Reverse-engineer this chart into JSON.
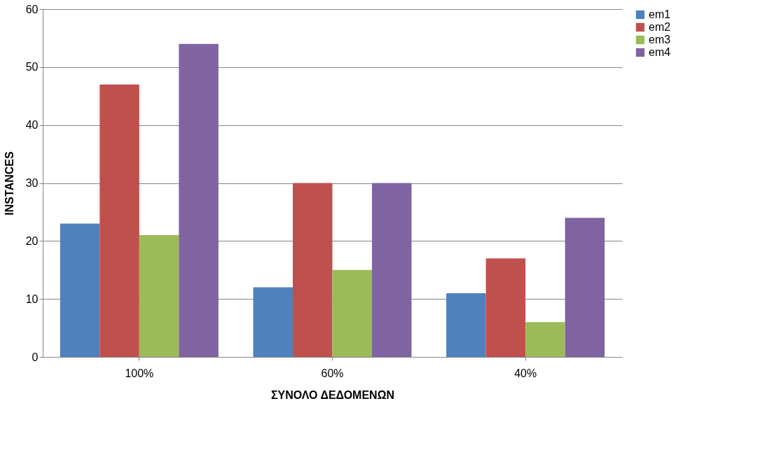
{
  "chart_data": {
    "type": "bar",
    "xlabel": "ΣΥΝΟΛΟ ΔΕΔΟΜΕΝΩΝ",
    "ylabel": "INSTANCES",
    "categories": [
      "100%",
      "60%",
      "40%"
    ],
    "series": [
      {
        "name": "em1",
        "color": "#4f81bd",
        "values": [
          23,
          12,
          11
        ]
      },
      {
        "name": "em2",
        "color": "#c0504d",
        "values": [
          47,
          30,
          17
        ]
      },
      {
        "name": "em3",
        "color": "#9bbb59",
        "values": [
          21,
          15,
          6
        ]
      },
      {
        "name": "em4",
        "color": "#8064a2",
        "values": [
          54,
          30,
          24
        ]
      }
    ],
    "ylim": [
      0,
      60
    ],
    "yticks": [
      0,
      10,
      20,
      30,
      40,
      50,
      60
    ],
    "grid": "y",
    "legend": "right"
  }
}
